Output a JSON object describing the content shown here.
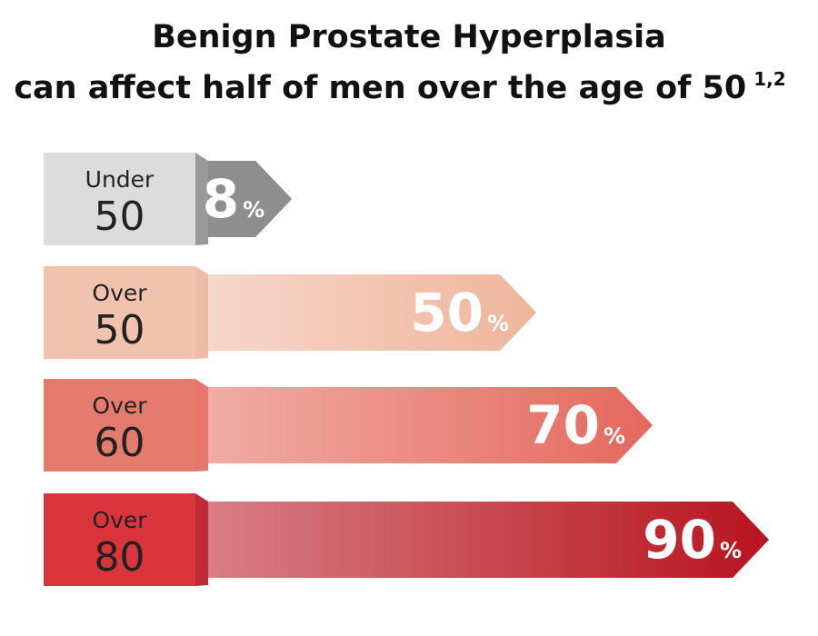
{
  "chart_data": {
    "type": "arrow-bar",
    "title": [
      "Benign Prostate Hyperplasia",
      "can affect half of men over the age of 50"
    ],
    "title_superscript": "1,2",
    "categories": [
      [
        "Under",
        "50"
      ],
      [
        "Over",
        "50"
      ],
      [
        "Over",
        "60"
      ],
      [
        "Over",
        "80"
      ]
    ],
    "values": [
      8,
      50,
      70,
      90
    ],
    "value_unit": "%",
    "colors": [
      "#8e8e8e",
      "#efb59c",
      "#e4685c",
      "#b8141f"
    ],
    "label_colors": [
      "#dcdcdc",
      "#f1c3ae",
      "#e57b6d",
      "#da353d"
    ]
  }
}
